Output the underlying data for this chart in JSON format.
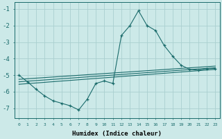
{
  "xlabel": "Humidex (Indice chaleur)",
  "background_color": "#cce9e8",
  "grid_color": "#aacfcf",
  "line_color": "#1a6b6b",
  "xlim": [
    -0.5,
    23.5
  ],
  "ylim": [
    -7.6,
    -0.6
  ],
  "yticks": [
    -7,
    -6,
    -5,
    -4,
    -3,
    -2,
    -1
  ],
  "xticks": [
    0,
    1,
    2,
    3,
    4,
    5,
    6,
    7,
    8,
    9,
    10,
    11,
    12,
    13,
    14,
    15,
    16,
    17,
    18,
    19,
    20,
    21,
    22,
    23
  ],
  "main_x": [
    0,
    1,
    2,
    3,
    4,
    5,
    6,
    7,
    8,
    9,
    10,
    11,
    12,
    13,
    14,
    15,
    16,
    17,
    18,
    19,
    20,
    21,
    22,
    23
  ],
  "main_y": [
    -5.0,
    -5.4,
    -5.85,
    -6.25,
    -6.55,
    -6.7,
    -6.85,
    -7.1,
    -6.45,
    -5.5,
    -5.35,
    -5.5,
    -2.6,
    -2.0,
    -1.1,
    -2.0,
    -2.3,
    -3.2,
    -3.85,
    -4.4,
    -4.65,
    -4.7,
    -4.6,
    -4.6
  ],
  "trend_lines": [
    {
      "x": [
        0,
        23
      ],
      "y": [
        -5.25,
        -4.45
      ]
    },
    {
      "x": [
        0,
        23
      ],
      "y": [
        -5.4,
        -4.55
      ]
    },
    {
      "x": [
        0,
        23
      ],
      "y": [
        -5.55,
        -4.65
      ]
    }
  ]
}
